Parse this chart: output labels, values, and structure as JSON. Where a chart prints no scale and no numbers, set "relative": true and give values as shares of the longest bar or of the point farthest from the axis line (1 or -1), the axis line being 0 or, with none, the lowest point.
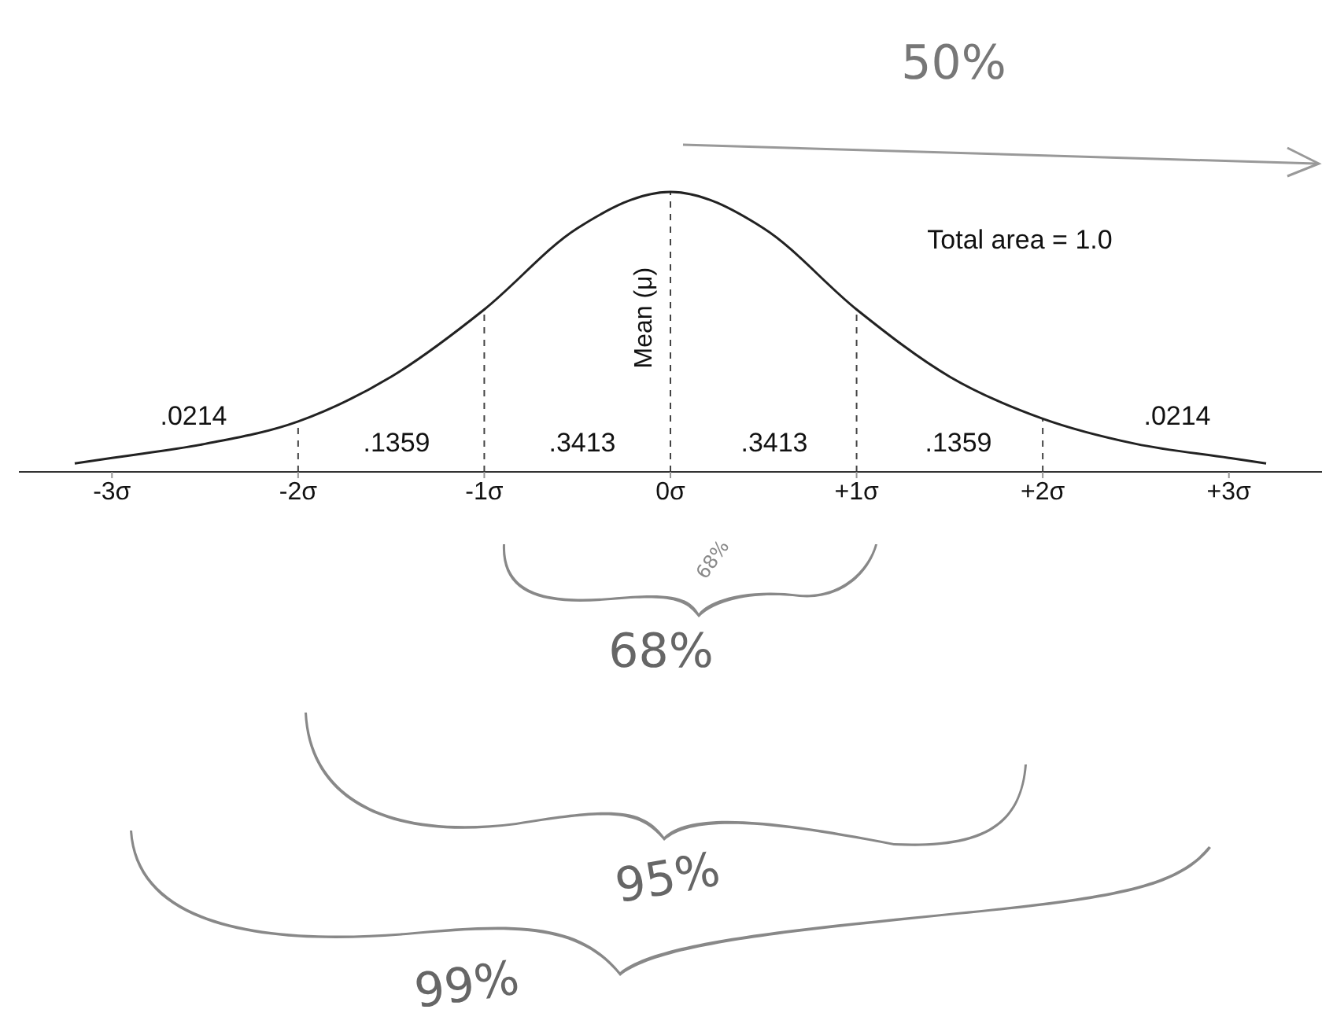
{
  "chart_data": {
    "type": "line",
    "relative": true,
    "x": [
      -3.2,
      -3,
      -2.5,
      -2,
      -1.5,
      -1,
      -0.5,
      0,
      0.5,
      1,
      1.5,
      2,
      2.5,
      3,
      3.2
    ],
    "series": [
      {
        "color": "#222222",
        "values": [
          0.03,
          0.05,
          0.1,
          0.18,
          0.34,
          0.58,
          0.87,
          1,
          0.87,
          0.58,
          0.34,
          0.19,
          0.1,
          0.05,
          0.03
        ]
      }
    ],
    "xlim": [
      -3.5,
      3.5
    ],
    "xticks": [
      {
        "value": -3,
        "label": "-3σ"
      },
      {
        "value": -2,
        "label": "-2σ"
      },
      {
        "value": -1,
        "label": "-1σ"
      },
      {
        "value": 0,
        "label": "0σ"
      },
      {
        "value": 1,
        "label": "+1σ"
      },
      {
        "value": 2,
        "label": "+2σ"
      },
      {
        "value": 3,
        "label": "+3σ"
      }
    ],
    "ref_lines": [
      {
        "axis": "x",
        "value": -2,
        "line_style": "dashed"
      },
      {
        "axis": "x",
        "value": -1,
        "line_style": "dashed"
      },
      {
        "axis": "x",
        "value": 0,
        "label": "Mean (μ)",
        "line_style": "dashed"
      },
      {
        "axis": "x",
        "value": 1,
        "line_style": "dashed"
      },
      {
        "axis": "x",
        "value": 2,
        "line_style": "dashed"
      }
    ],
    "annotations": [
      ".0214",
      ".1359",
      ".3413",
      ".3413",
      ".1359",
      ".0214",
      "Total area = 1.0",
      "50%",
      "68%",
      "68%",
      "95%",
      "99%"
    ],
    "marker": "none",
    "line_style": "solid"
  }
}
